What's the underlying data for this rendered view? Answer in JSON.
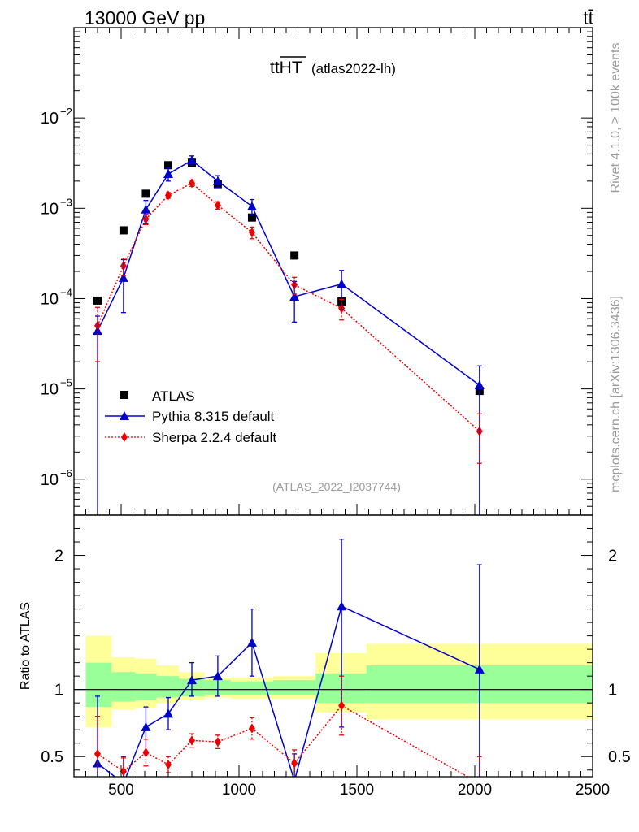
{
  "header": {
    "left": "13000 GeV pp",
    "right": "tt̄"
  },
  "side_labels": {
    "rivet": "Rivet 4.1.0, ≥ 100k events",
    "mcplots": "mcplots.cern.ch [arXiv:1306.3436]"
  },
  "chart_data": {
    "type": "scatter",
    "title_main": "ttHT",
    "title_sub": "(atlas2022-lh)",
    "watermark": "(ATLAS_2022_I2037744)",
    "xlabel": "",
    "xlim": [
      300,
      2500
    ],
    "x_ticks": [
      500,
      1000,
      1500,
      2000,
      2500
    ],
    "x_tick_labels": [
      "500",
      "1000",
      "1500",
      "2000",
      "2500"
    ],
    "main": {
      "yscale": "log",
      "ylim": [
        4e-07,
        0.1
      ],
      "y_ticks": [
        1e-06,
        1e-05,
        0.0001,
        0.001,
        0.01
      ],
      "y_tick_labels": [
        {
          "base": "10",
          "exp": "−6"
        },
        {
          "base": "10",
          "exp": "−5"
        },
        {
          "base": "10",
          "exp": "−4"
        },
        {
          "base": "10",
          "exp": "−3"
        },
        {
          "base": "10",
          "exp": "−2"
        }
      ]
    },
    "ratio": {
      "ylabel": "Ratio to ATLAS",
      "ylim": [
        0.35,
        2.3
      ],
      "y_ticks": [
        0.5,
        1,
        2
      ],
      "y_tick_labels": [
        "0.5",
        "1",
        "2"
      ]
    },
    "legend": [
      "ATLAS",
      "Pythia 8.315 default",
      "Sherpa 2.2.4 default"
    ],
    "legend_position": "lower-left",
    "series": [
      {
        "name": "ATLAS",
        "color": "#000000",
        "marker": "square",
        "x": [
          400,
          510,
          605,
          700,
          800,
          910,
          1055,
          1235,
          1435,
          2020
        ],
        "y": [
          9.5e-05,
          0.00057,
          0.00145,
          0.003,
          0.0032,
          0.00185,
          0.00079,
          0.0003,
          9.3e-05,
          9.5e-06
        ]
      },
      {
        "name": "Pythia 8.315 default",
        "color": "#0000cc",
        "marker": "triangle",
        "line": "solid",
        "x": [
          400,
          510,
          605,
          700,
          800,
          910,
          1055,
          1235,
          1435,
          2020
        ],
        "y": [
          4.4e-05,
          0.00017,
          0.00097,
          0.0024,
          0.0034,
          0.002,
          0.00105,
          0.000105,
          0.000145,
          1.1e-05
        ],
        "err_low": [
          4.4e-05,
          0.0001,
          0.0003,
          0.0004,
          0.0004,
          0.0003,
          0.0002,
          5e-05,
          7e-05,
          1.07e-05
        ],
        "err_high": [
          2e-05,
          0.0001,
          0.00025,
          0.0004,
          0.0004,
          0.0003,
          0.0002,
          5e-05,
          6e-05,
          7e-06
        ],
        "ratio": [
          0.45,
          0.3,
          0.72,
          0.82,
          1.07,
          1.1,
          1.35,
          0.32,
          1.62,
          1.15
        ],
        "ratio_err_low": [
          0.45,
          0.2,
          0.2,
          0.12,
          0.12,
          0.15,
          0.25,
          0.2,
          0.9,
          1.0
        ],
        "ratio_err_high": [
          0.5,
          0.2,
          0.15,
          0.12,
          0.13,
          0.15,
          0.25,
          0.2,
          0.5,
          0.78
        ]
      },
      {
        "name": "Sherpa 2.2.4 default",
        "color": "#ee0000",
        "marker": "diamond",
        "line": "dotted",
        "x": [
          400,
          510,
          605,
          700,
          800,
          910,
          1055,
          1235,
          1435,
          2020
        ],
        "y": [
          5e-05,
          0.00023,
          0.00076,
          0.00139,
          0.0019,
          0.00108,
          0.00054,
          0.000142,
          7.8e-05,
          3.4e-06
        ],
        "err_low": [
          3e-05,
          5e-05,
          0.0001,
          0.0001,
          0.00015,
          0.0001,
          8e-05,
          3e-05,
          2e-05,
          1.9e-06
        ],
        "err_high": [
          3e-05,
          5e-05,
          0.0001,
          0.0001,
          0.00015,
          0.0001,
          8e-05,
          3e-05,
          2e-05,
          1.9e-06
        ],
        "ratio": [
          0.52,
          0.39,
          0.53,
          0.44,
          0.62,
          0.61,
          0.71,
          0.45,
          0.88,
          0.3
        ],
        "ratio_err_low": [
          0.28,
          0.1,
          0.1,
          0.06,
          0.05,
          0.05,
          0.08,
          0.1,
          0.22,
          0.2
        ],
        "ratio_err_high": [
          0.28,
          0.1,
          0.1,
          0.06,
          0.05,
          0.05,
          0.08,
          0.1,
          0.22,
          0.2
        ]
      }
    ],
    "uncertainty_bands": {
      "bin_edges": [
        350,
        460,
        560,
        650,
        745,
        855,
        965,
        1145,
        1325,
        1540,
        2500
      ],
      "stat_low": [
        0.87,
        0.91,
        0.92,
        0.94,
        0.95,
        0.96,
        0.96,
        0.96,
        0.9,
        0.9
      ],
      "stat_high": [
        1.2,
        1.13,
        1.12,
        1.1,
        1.08,
        1.07,
        1.06,
        1.07,
        1.12,
        1.18
      ],
      "total_low": [
        0.72,
        0.85,
        0.86,
        0.9,
        0.92,
        0.94,
        0.93,
        0.93,
        0.83,
        0.78
      ],
      "total_high": [
        1.4,
        1.24,
        1.23,
        1.18,
        1.13,
        1.09,
        1.09,
        1.1,
        1.27,
        1.34
      ],
      "stat_color": "#99ff99",
      "total_color": "#ffff99"
    }
  }
}
